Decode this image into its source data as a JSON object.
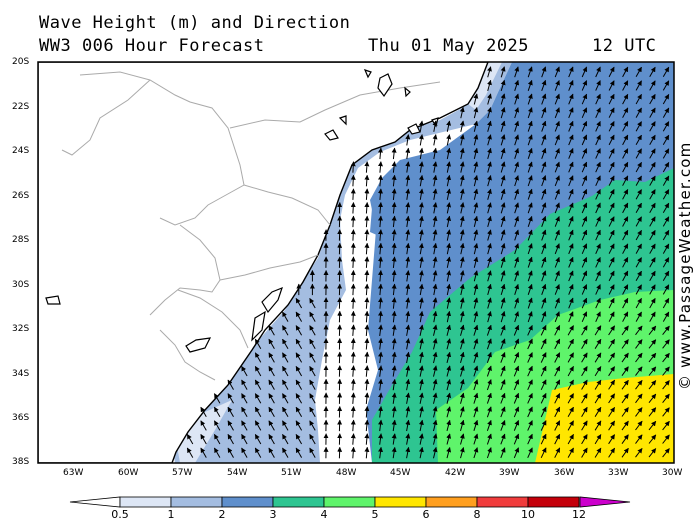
{
  "header": {
    "title": "Wave Height (m) and Direction",
    "model": "WW3 006 Hour Forecast",
    "date": "Thu 01 May 2025",
    "time": "12 UTC"
  },
  "credit": "© www.PassageWeather.com",
  "lat_ticks": [
    "20S",
    "22S",
    "24S",
    "26S",
    "28S",
    "30S",
    "32S",
    "34S",
    "36S",
    "38S"
  ],
  "lon_ticks": [
    "63W",
    "60W",
    "57W",
    "54W",
    "51W",
    "48W",
    "45W",
    "42W",
    "39W",
    "36W",
    "33W",
    "30W"
  ],
  "legend": {
    "colors": [
      "#dde6f5",
      "#a4bde1",
      "#5f8fcc",
      "#2ec591",
      "#5ff46b",
      "#ffe600",
      "#ff9f1f",
      "#f03c3c",
      "#c4000a",
      "#cc00cc"
    ],
    "labels": [
      "0.5",
      "1",
      "2",
      "3",
      "4",
      "5",
      "6",
      "8",
      "10",
      "12"
    ]
  }
}
